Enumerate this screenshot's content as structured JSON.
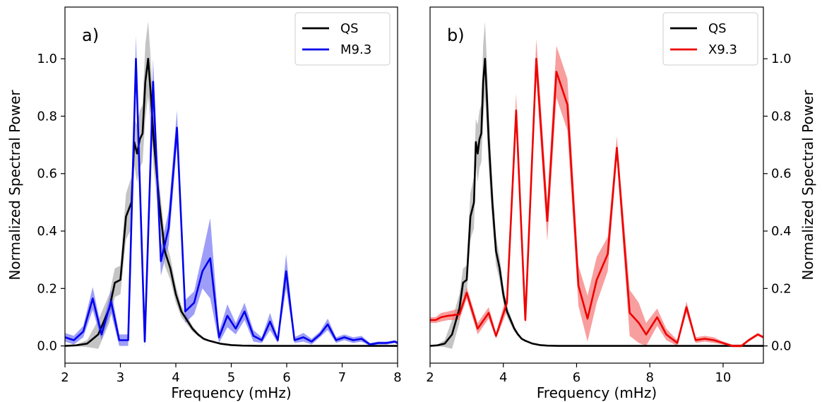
{
  "chart_data": [
    {
      "type": "line",
      "panel_label": "a)",
      "xlabel": "Frequency (mHz)",
      "ylabel": "Normalized Spectral Power",
      "xlim": [
        2,
        8
      ],
      "ylim": [
        -0.06,
        1.18
      ],
      "xticks": [
        2,
        3,
        4,
        5,
        6,
        7,
        8
      ],
      "yticks": [
        "0.0",
        "0.2",
        "0.4",
        "0.6",
        "0.8",
        "1.0"
      ],
      "ytick_values": [
        0.0,
        0.2,
        0.4,
        0.6,
        0.8,
        1.0
      ],
      "legend_position": "top-right",
      "series": [
        {
          "name": "QS",
          "color": "#000000",
          "band_color": "#b0b0b0",
          "x": [
            2.0,
            2.2,
            2.4,
            2.6,
            2.8,
            2.9,
            3.0,
            3.1,
            3.2,
            3.25,
            3.3,
            3.35,
            3.4,
            3.45,
            3.5,
            3.55,
            3.6,
            3.7,
            3.8,
            3.9,
            4.0,
            4.1,
            4.2,
            4.3,
            4.4,
            4.5,
            4.6,
            4.8,
            5.0,
            5.2,
            5.5,
            6.0,
            8.0
          ],
          "y": [
            0.0,
            0.002,
            0.008,
            0.04,
            0.13,
            0.22,
            0.23,
            0.45,
            0.5,
            0.71,
            0.67,
            0.72,
            0.74,
            0.92,
            1.0,
            0.87,
            0.72,
            0.5,
            0.33,
            0.27,
            0.18,
            0.12,
            0.09,
            0.06,
            0.04,
            0.025,
            0.018,
            0.008,
            0.003,
            0.001,
            0.0,
            0.0,
            0.0
          ],
          "band": [
            0.0,
            0.003,
            0.012,
            0.05,
            0.05,
            0.05,
            0.05,
            0.08,
            0.09,
            0.08,
            0.1,
            0.1,
            0.1,
            0.13,
            0.13,
            0.12,
            0.1,
            0.07,
            0.05,
            0.04,
            0.03,
            0.02,
            0.015,
            0.01,
            0.006,
            0.004,
            0.003,
            0.002,
            0.001,
            0.0,
            0.0,
            0.0,
            0.0
          ]
        },
        {
          "name": "M9.3",
          "color": "#0000ee",
          "band_color": "#7d7df5",
          "x": [
            2.0,
            2.16,
            2.33,
            2.5,
            2.66,
            2.83,
            2.98,
            3.14,
            3.28,
            3.44,
            3.59,
            3.73,
            3.87,
            4.02,
            4.17,
            4.33,
            4.48,
            4.62,
            4.78,
            4.93,
            5.08,
            5.24,
            5.4,
            5.55,
            5.7,
            5.84,
            5.99,
            6.14,
            6.3,
            6.45,
            6.6,
            6.74,
            6.89,
            7.04,
            7.2,
            7.35,
            7.5,
            7.65,
            7.8,
            7.95,
            8.0
          ],
          "y": [
            0.03,
            0.02,
            0.05,
            0.165,
            0.04,
            0.155,
            0.02,
            0.02,
            1.0,
            0.015,
            0.92,
            0.295,
            0.41,
            0.76,
            0.12,
            0.15,
            0.26,
            0.305,
            0.03,
            0.105,
            0.06,
            0.12,
            0.035,
            0.02,
            0.085,
            0.02,
            0.26,
            0.02,
            0.03,
            0.015,
            0.04,
            0.075,
            0.02,
            0.03,
            0.02,
            0.025,
            0.005,
            0.01,
            0.01,
            0.015,
            0.01
          ],
          "band": [
            0.015,
            0.015,
            0.02,
            0.04,
            0.02,
            0.04,
            0.02,
            0.02,
            0.08,
            0.02,
            0.08,
            0.05,
            0.06,
            0.06,
            0.04,
            0.04,
            0.06,
            0.14,
            0.02,
            0.04,
            0.02,
            0.03,
            0.02,
            0.01,
            0.03,
            0.01,
            0.06,
            0.01,
            0.015,
            0.01,
            0.01,
            0.02,
            0.01,
            0.01,
            0.01,
            0.01,
            0.005,
            0.005,
            0.005,
            0.005,
            0.005
          ]
        }
      ]
    },
    {
      "type": "line",
      "panel_label": "b)",
      "xlabel": "Frequency (mHz)",
      "ylabel": "Normalized Spectral Power",
      "xlim": [
        2,
        11.1
      ],
      "ylim": [
        -0.06,
        1.18
      ],
      "xticks": [
        2,
        4,
        6,
        8,
        10
      ],
      "yticks": [
        "0.0",
        "0.2",
        "0.4",
        "0.6",
        "0.8",
        "1.0"
      ],
      "ytick_values": [
        0.0,
        0.2,
        0.4,
        0.6,
        0.8,
        1.0
      ],
      "legend_position": "top-right",
      "series": [
        {
          "name": "QS",
          "color": "#000000",
          "band_color": "#b0b0b0",
          "x": [
            2.0,
            2.2,
            2.4,
            2.6,
            2.8,
            2.9,
            3.0,
            3.1,
            3.2,
            3.25,
            3.3,
            3.35,
            3.4,
            3.45,
            3.5,
            3.55,
            3.6,
            3.7,
            3.8,
            3.9,
            4.0,
            4.1,
            4.2,
            4.3,
            4.4,
            4.5,
            4.6,
            4.8,
            5.0,
            5.2,
            5.5,
            6.0,
            11.1
          ],
          "y": [
            0.0,
            0.002,
            0.008,
            0.04,
            0.13,
            0.22,
            0.23,
            0.45,
            0.5,
            0.71,
            0.67,
            0.72,
            0.74,
            0.92,
            1.0,
            0.87,
            0.72,
            0.5,
            0.33,
            0.27,
            0.18,
            0.12,
            0.09,
            0.06,
            0.04,
            0.025,
            0.018,
            0.008,
            0.003,
            0.001,
            0.0,
            0.0,
            0.0
          ],
          "band": [
            0.0,
            0.003,
            0.012,
            0.05,
            0.05,
            0.05,
            0.05,
            0.08,
            0.09,
            0.08,
            0.1,
            0.1,
            0.1,
            0.13,
            0.13,
            0.12,
            0.1,
            0.07,
            0.05,
            0.04,
            0.03,
            0.02,
            0.015,
            0.01,
            0.006,
            0.004,
            0.003,
            0.002,
            0.001,
            0.0,
            0.0,
            0.0,
            0.0
          ]
        },
        {
          "name": "X9.3",
          "color": "#ee0000",
          "band_color": "#f57d7d",
          "x": [
            2.0,
            2.15,
            2.3,
            2.5,
            2.8,
            3.0,
            3.3,
            3.6,
            3.8,
            4.1,
            4.35,
            4.6,
            4.9,
            5.2,
            5.45,
            5.75,
            6.05,
            6.3,
            6.55,
            6.85,
            7.1,
            7.45,
            7.7,
            7.9,
            8.2,
            8.45,
            8.75,
            9.0,
            9.25,
            9.5,
            9.75,
            10.0,
            10.25,
            10.5,
            10.7,
            10.95,
            11.1
          ],
          "y": [
            0.09,
            0.09,
            0.1,
            0.105,
            0.11,
            0.185,
            0.06,
            0.115,
            0.035,
            0.15,
            0.82,
            0.09,
            1.0,
            0.435,
            0.955,
            0.84,
            0.21,
            0.095,
            0.23,
            0.32,
            0.69,
            0.115,
            0.08,
            0.04,
            0.1,
            0.04,
            0.01,
            0.135,
            0.02,
            0.025,
            0.02,
            0.01,
            0.0,
            0.0,
            0.02,
            0.04,
            0.03
          ],
          "band": [
            0.01,
            0.01,
            0.015,
            0.015,
            0.02,
            0.02,
            0.02,
            0.02,
            0.01,
            0.03,
            0.06,
            0.02,
            0.07,
            0.07,
            0.09,
            0.09,
            0.07,
            0.08,
            0.08,
            0.06,
            0.04,
            0.08,
            0.07,
            0.04,
            0.03,
            0.02,
            0.01,
            0.02,
            0.01,
            0.01,
            0.01,
            0.005,
            0.005,
            0.005,
            0.005,
            0.005,
            0.005
          ]
        }
      ]
    }
  ]
}
